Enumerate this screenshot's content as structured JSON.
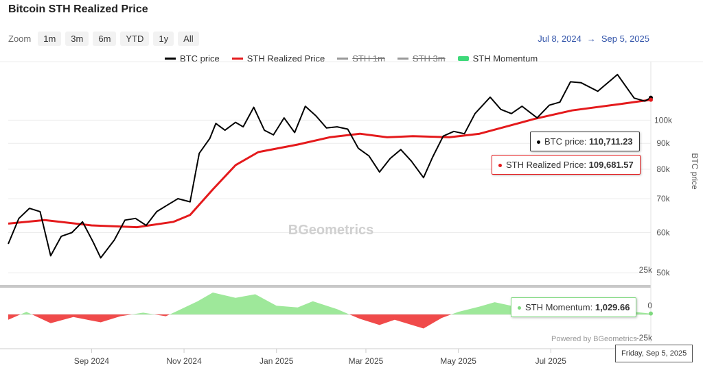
{
  "page": {
    "title": "Bitcoin STH Realized Price",
    "zoom_label": "Zoom",
    "zoom_buttons": [
      "1m",
      "3m",
      "6m",
      "YTD",
      "1y",
      "All"
    ],
    "range_from": "Jul 8, 2024",
    "range_arrow": "→",
    "range_to": "Sep 5, 2025",
    "credits": "Powered by BGeometrics",
    "watermark": "BGeometrics",
    "x_tooltip": "Friday, Sep 5, 2025"
  },
  "legend": [
    {
      "label": "BTC price",
      "color": "#000000",
      "enabled": true,
      "kind": "line"
    },
    {
      "label": "STH Realized Price",
      "color": "#e41a1c",
      "enabled": true,
      "kind": "line"
    },
    {
      "label": "STH 1m",
      "color": "#888888",
      "enabled": false,
      "kind": "line"
    },
    {
      "label": "STH 3m",
      "color": "#888888",
      "enabled": false,
      "kind": "line"
    },
    {
      "label": "STH Momentum",
      "color": "#3fd97a",
      "enabled": true,
      "kind": "area"
    }
  ],
  "tooltips": {
    "btc": {
      "label": "BTC price:",
      "value": "110,711.23",
      "color": "#000000"
    },
    "sth": {
      "label": "STH Realized Price:",
      "value": "109,681.57",
      "color": "#e41a1c"
    },
    "momentum": {
      "label": "STH Momentum:",
      "value": "1,029.66",
      "color": "#7fd97f"
    }
  },
  "chart_data": {
    "type": "line",
    "x_start": "2024-07-08",
    "x_end": "2025-09-05",
    "x_ticks": [
      {
        "date": "2024-09-01",
        "label": "Sep 2024"
      },
      {
        "date": "2024-11-01",
        "label": "Nov 2024"
      },
      {
        "date": "2025-01-01",
        "label": "Jan 2025"
      },
      {
        "date": "2025-03-01",
        "label": "Mar 2025"
      },
      {
        "date": "2025-05-01",
        "label": "May 2025"
      },
      {
        "date": "2025-07-01",
        "label": "Jul 2025"
      }
    ],
    "price_axis": {
      "title": "BTC price",
      "scale": "log",
      "ticks": [
        {
          "value": 50000,
          "label": "50k"
        },
        {
          "value": 60000,
          "label": "60k"
        },
        {
          "value": 70000,
          "label": "70k"
        },
        {
          "value": 80000,
          "label": "80k"
        },
        {
          "value": 90000,
          "label": "90k"
        },
        {
          "value": 100000,
          "label": "100k"
        }
      ]
    },
    "momentum_axis": {
      "ticks": [
        {
          "value": 25000,
          "label": "25k"
        },
        {
          "value": 0,
          "label": "0"
        },
        {
          "value": -25000,
          "label": "-25k"
        }
      ]
    },
    "series": [
      {
        "name": "BTC price",
        "color": "#000000",
        "points": [
          [
            "2024-07-08",
            57000
          ],
          [
            "2024-07-15",
            64000
          ],
          [
            "2024-07-22",
            67000
          ],
          [
            "2024-07-29",
            66000
          ],
          [
            "2024-08-05",
            54000
          ],
          [
            "2024-08-12",
            59000
          ],
          [
            "2024-08-19",
            60000
          ],
          [
            "2024-08-26",
            63000
          ],
          [
            "2024-09-02",
            57500
          ],
          [
            "2024-09-07",
            53500
          ],
          [
            "2024-09-16",
            58000
          ],
          [
            "2024-09-23",
            63500
          ],
          [
            "2024-09-30",
            64000
          ],
          [
            "2024-10-07",
            62000
          ],
          [
            "2024-10-14",
            66000
          ],
          [
            "2024-10-21",
            68000
          ],
          [
            "2024-10-28",
            70000
          ],
          [
            "2024-11-05",
            69000
          ],
          [
            "2024-11-11",
            86000
          ],
          [
            "2024-11-18",
            92000
          ],
          [
            "2024-11-22",
            98500
          ],
          [
            "2024-11-28",
            95500
          ],
          [
            "2024-12-05",
            99000
          ],
          [
            "2024-12-10",
            97000
          ],
          [
            "2024-12-17",
            106000
          ],
          [
            "2024-12-24",
            95500
          ],
          [
            "2024-12-30",
            93500
          ],
          [
            "2025-01-06",
            101000
          ],
          [
            "2025-01-13",
            94500
          ],
          [
            "2025-01-20",
            106500
          ],
          [
            "2025-01-27",
            102000
          ],
          [
            "2025-02-03",
            96500
          ],
          [
            "2025-02-10",
            97000
          ],
          [
            "2025-02-17",
            96000
          ],
          [
            "2025-02-24",
            88000
          ],
          [
            "2025-03-03",
            85000
          ],
          [
            "2025-03-10",
            79000
          ],
          [
            "2025-03-17",
            84000
          ],
          [
            "2025-03-24",
            87500
          ],
          [
            "2025-03-31",
            83000
          ],
          [
            "2025-04-08",
            77000
          ],
          [
            "2025-04-14",
            84500
          ],
          [
            "2025-04-21",
            93000
          ],
          [
            "2025-04-28",
            95000
          ],
          [
            "2025-05-05",
            94000
          ],
          [
            "2025-05-12",
            103000
          ],
          [
            "2025-05-22",
            111000
          ],
          [
            "2025-05-29",
            105000
          ],
          [
            "2025-06-05",
            103000
          ],
          [
            "2025-06-12",
            106500
          ],
          [
            "2025-06-22",
            101000
          ],
          [
            "2025-06-30",
            107000
          ],
          [
            "2025-07-07",
            108500
          ],
          [
            "2025-07-14",
            119000
          ],
          [
            "2025-07-21",
            118500
          ],
          [
            "2025-08-01",
            114000
          ],
          [
            "2025-08-14",
            123000
          ],
          [
            "2025-08-25",
            110500
          ],
          [
            "2025-09-01",
            109000
          ],
          [
            "2025-09-05",
            110711
          ]
        ]
      },
      {
        "name": "STH Realized Price",
        "color": "#e41a1c",
        "points": [
          [
            "2024-07-08",
            62500
          ],
          [
            "2024-08-01",
            63500
          ],
          [
            "2024-09-01",
            62000
          ],
          [
            "2024-10-01",
            61500
          ],
          [
            "2024-10-25",
            63000
          ],
          [
            "2024-11-05",
            65000
          ],
          [
            "2024-11-20",
            73000
          ],
          [
            "2024-12-05",
            81500
          ],
          [
            "2024-12-20",
            86500
          ],
          [
            "2025-01-15",
            89500
          ],
          [
            "2025-02-05",
            92500
          ],
          [
            "2025-02-25",
            94000
          ],
          [
            "2025-03-15",
            92500
          ],
          [
            "2025-04-01",
            93000
          ],
          [
            "2025-04-25",
            92500
          ],
          [
            "2025-05-15",
            94000
          ],
          [
            "2025-06-01",
            97000
          ],
          [
            "2025-06-20",
            100500
          ],
          [
            "2025-07-15",
            104500
          ],
          [
            "2025-08-15",
            107500
          ],
          [
            "2025-09-05",
            109682
          ]
        ]
      },
      {
        "name": "STH Momentum",
        "color": "#3fd97a",
        "points": [
          [
            "2024-07-08",
            -6000
          ],
          [
            "2024-07-20",
            3000
          ],
          [
            "2024-08-05",
            -10000
          ],
          [
            "2024-08-20",
            -3000
          ],
          [
            "2024-09-07",
            -9000
          ],
          [
            "2024-09-20",
            -2000
          ],
          [
            "2024-10-05",
            2000
          ],
          [
            "2024-10-20",
            -2000
          ],
          [
            "2024-10-30",
            6000
          ],
          [
            "2024-11-10",
            15000
          ],
          [
            "2024-11-20",
            25000
          ],
          [
            "2024-12-05",
            19000
          ],
          [
            "2024-12-18",
            23000
          ],
          [
            "2025-01-01",
            10000
          ],
          [
            "2025-01-15",
            8000
          ],
          [
            "2025-01-25",
            15000
          ],
          [
            "2025-02-10",
            6000
          ],
          [
            "2025-02-25",
            -5000
          ],
          [
            "2025-03-10",
            -12000
          ],
          [
            "2025-03-20",
            -6000
          ],
          [
            "2025-04-08",
            -16000
          ],
          [
            "2025-04-20",
            -4000
          ],
          [
            "2025-05-01",
            3000
          ],
          [
            "2025-05-15",
            9000
          ],
          [
            "2025-05-25",
            14000
          ],
          [
            "2025-06-10",
            8000
          ],
          [
            "2025-06-25",
            5000
          ],
          [
            "2025-07-15",
            14000
          ],
          [
            "2025-08-01",
            9000
          ],
          [
            "2025-08-15",
            15000
          ],
          [
            "2025-08-25",
            3000
          ],
          [
            "2025-09-05",
            1030
          ]
        ]
      }
    ]
  }
}
